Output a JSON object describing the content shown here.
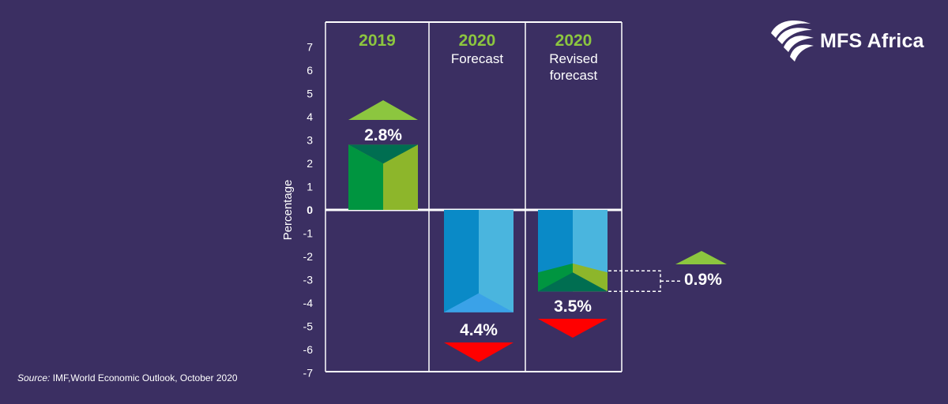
{
  "brand": {
    "name": "MFS Africa"
  },
  "source": {
    "label": "Source:",
    "text": "IMF,World Economic Outlook, October 2020"
  },
  "chart_data": {
    "type": "bar",
    "ylabel": "Percentage",
    "ylim": [
      -7,
      7.5
    ],
    "yticks": [
      7,
      6,
      5,
      4,
      3,
      2,
      1,
      0,
      -1,
      -2,
      -3,
      -4,
      -5,
      -6,
      -7
    ],
    "columns": [
      {
        "year": "2019",
        "subtitle": [],
        "value": 2.8,
        "label": "2.8%",
        "direction": "up"
      },
      {
        "year": "2020",
        "subtitle": [
          "Forecast"
        ],
        "value": -4.4,
        "label": "4.4%",
        "direction": "down"
      },
      {
        "year": "2020",
        "subtitle": [
          "Revised",
          "forecast"
        ],
        "value": -3.5,
        "label": "3.5%",
        "direction": "down"
      }
    ],
    "annotation": {
      "label": "0.9%",
      "value": 0.9,
      "from": -4.4,
      "to": -3.5,
      "direction": "up"
    }
  },
  "colors": {
    "background": "#3b2f62",
    "accent_green": "#8cc63f",
    "green_dark": "#009540",
    "green_light": "#8db62b",
    "green_top": "#006e51",
    "blue_dark": "#0a8ac7",
    "blue_light": "#4ab5de",
    "blue_bottom": "#3aa2e8",
    "down_red": "#ff0000"
  }
}
